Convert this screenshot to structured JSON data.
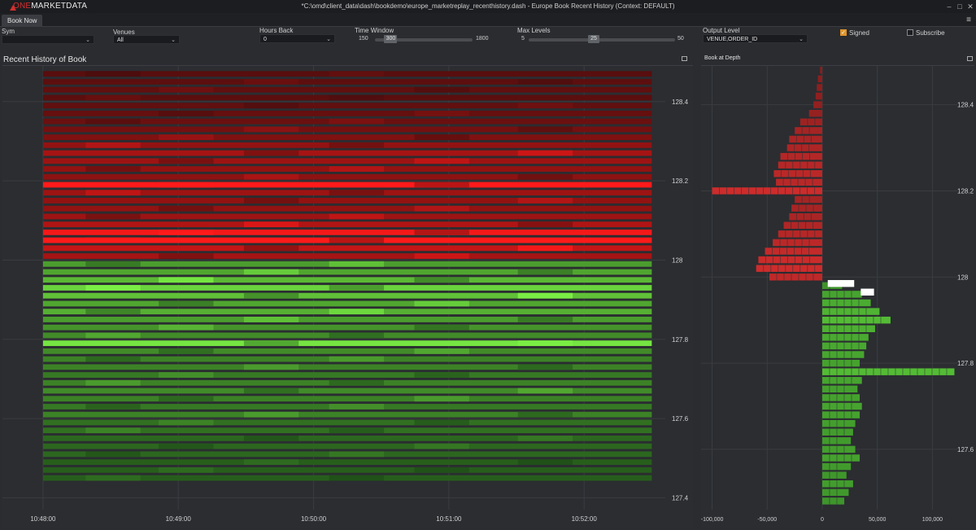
{
  "app": {
    "logo_one": "ONE",
    "logo_rest": "MARKETDATA",
    "window_title": "*C:\\omd\\client_data\\dash\\bookdemo\\europe_marketreplay_recenthistory.dash - Europe Book Recent History (Context: DEFAULT)"
  },
  "tabs": [
    {
      "label": "Book Now"
    }
  ],
  "controls": {
    "sym": {
      "label": "Sym",
      "value": ""
    },
    "venues": {
      "label": "Venues",
      "value": "All"
    },
    "hours_back": {
      "label": "Hours Back",
      "value": "0"
    },
    "time_window": {
      "label": "Time Window",
      "min": "150",
      "value": "300",
      "max": "1800",
      "fraction": 0.11
    },
    "max_levels": {
      "label": "Max Levels",
      "min": "5",
      "value": "25",
      "max": "50",
      "fraction": 0.44
    },
    "output_level": {
      "label": "Output Level",
      "value": "VENUE,ORDER_ID"
    },
    "signed": {
      "label": "Signed",
      "checked": true
    },
    "subscribe": {
      "label": "Subscribe",
      "checked": false
    }
  },
  "panels": {
    "left_title": "Recent History of Book",
    "right_title": "Book at Depth"
  },
  "colors": {
    "ask_bright": "#ff1a1a",
    "ask_dark": "#3a0c0c",
    "bid_bright": "#7aee44",
    "bid_dark": "#123a12",
    "best_marker": "#ffffff"
  },
  "chart_data": [
    {
      "type": "heatmap",
      "title": "Recent History of Book",
      "x_ticks": [
        "10:48:00",
        "10:49:00",
        "10:50:00",
        "10:51:00",
        "10:52:00"
      ],
      "y_ticks": [
        "128.4",
        "128.2",
        "128",
        "127.8",
        "127.6",
        "127.4"
      ],
      "x_range": [
        "10:47:42",
        "10:52:36"
      ],
      "ylim": [
        127.37,
        128.49
      ],
      "grid": true,
      "levels": {
        "ask_prices": [
          128.47,
          128.45,
          128.43,
          128.41,
          128.39,
          128.37,
          128.35,
          128.33,
          128.31,
          128.29,
          128.27,
          128.25,
          128.23,
          128.21,
          128.19,
          128.17,
          128.15,
          128.13,
          128.11,
          128.09,
          128.07,
          128.05,
          128.03,
          128.01
        ],
        "ask_intensity": [
          0.15,
          0.18,
          0.2,
          0.17,
          0.2,
          0.22,
          0.25,
          0.3,
          0.35,
          0.45,
          0.55,
          0.5,
          0.45,
          0.42,
          1.0,
          0.5,
          0.45,
          0.45,
          0.5,
          0.6,
          0.95,
          1.0,
          0.7,
          0.55
        ],
        "bid_prices": [
          127.99,
          127.97,
          127.95,
          127.93,
          127.91,
          127.89,
          127.87,
          127.85,
          127.83,
          127.81,
          127.79,
          127.77,
          127.75,
          127.73,
          127.71,
          127.69,
          127.67,
          127.65,
          127.63,
          127.61,
          127.59,
          127.57,
          127.55,
          127.53,
          127.51,
          127.49,
          127.47,
          127.45
        ],
        "bid_intensity": [
          0.55,
          0.6,
          0.7,
          0.85,
          0.75,
          0.6,
          0.65,
          0.55,
          0.5,
          0.45,
          0.95,
          0.45,
          0.4,
          0.4,
          0.35,
          0.4,
          0.45,
          0.4,
          0.35,
          0.4,
          0.3,
          0.3,
          0.25,
          0.25,
          0.25,
          0.2,
          0.2,
          0.2
        ]
      }
    },
    {
      "type": "bar",
      "title": "Book at Depth",
      "orientation": "horizontal",
      "x_ticks": [
        "-100,000",
        "-50,000",
        "0",
        "50,000",
        "100,000"
      ],
      "y_ticks": [
        "128.4",
        "128.2",
        "128",
        "127.8",
        "127.6"
      ],
      "xlim": [
        -110000,
        130000
      ],
      "ylim": [
        127.46,
        128.49
      ],
      "grid": true,
      "asks": {
        "prices": [
          128.48,
          128.46,
          128.44,
          128.42,
          128.4,
          128.38,
          128.36,
          128.34,
          128.32,
          128.3,
          128.28,
          128.26,
          128.24,
          128.22,
          128.2,
          128.18,
          128.16,
          128.14,
          128.12,
          128.1,
          128.08,
          128.06,
          128.04,
          128.02,
          128.0
        ],
        "values": [
          -2000,
          -4000,
          -5000,
          -6000,
          -8000,
          -12000,
          -20000,
          -25000,
          -30000,
          -32000,
          -38000,
          -40000,
          -44000,
          -42000,
          -100000,
          -25000,
          -28000,
          -30000,
          -35000,
          -40000,
          -45000,
          -52000,
          -58000,
          -60000,
          -48000
        ]
      },
      "bids": {
        "prices": [
          127.98,
          127.96,
          127.94,
          127.92,
          127.9,
          127.88,
          127.86,
          127.84,
          127.82,
          127.8,
          127.78,
          127.76,
          127.74,
          127.72,
          127.7,
          127.68,
          127.66,
          127.64,
          127.62,
          127.6,
          127.58,
          127.56,
          127.54,
          127.52,
          127.5,
          127.48
        ],
        "values": [
          18000,
          36000,
          44000,
          52000,
          62000,
          48000,
          42000,
          40000,
          38000,
          34000,
          120000,
          36000,
          32000,
          34000,
          36000,
          34000,
          30000,
          28000,
          26000,
          30000,
          34000,
          26000,
          22000,
          28000,
          24000,
          20000
        ]
      },
      "best": [
        {
          "price": 127.985,
          "value": 24000
        },
        {
          "price": 127.965,
          "value": 12000
        }
      ]
    }
  ]
}
